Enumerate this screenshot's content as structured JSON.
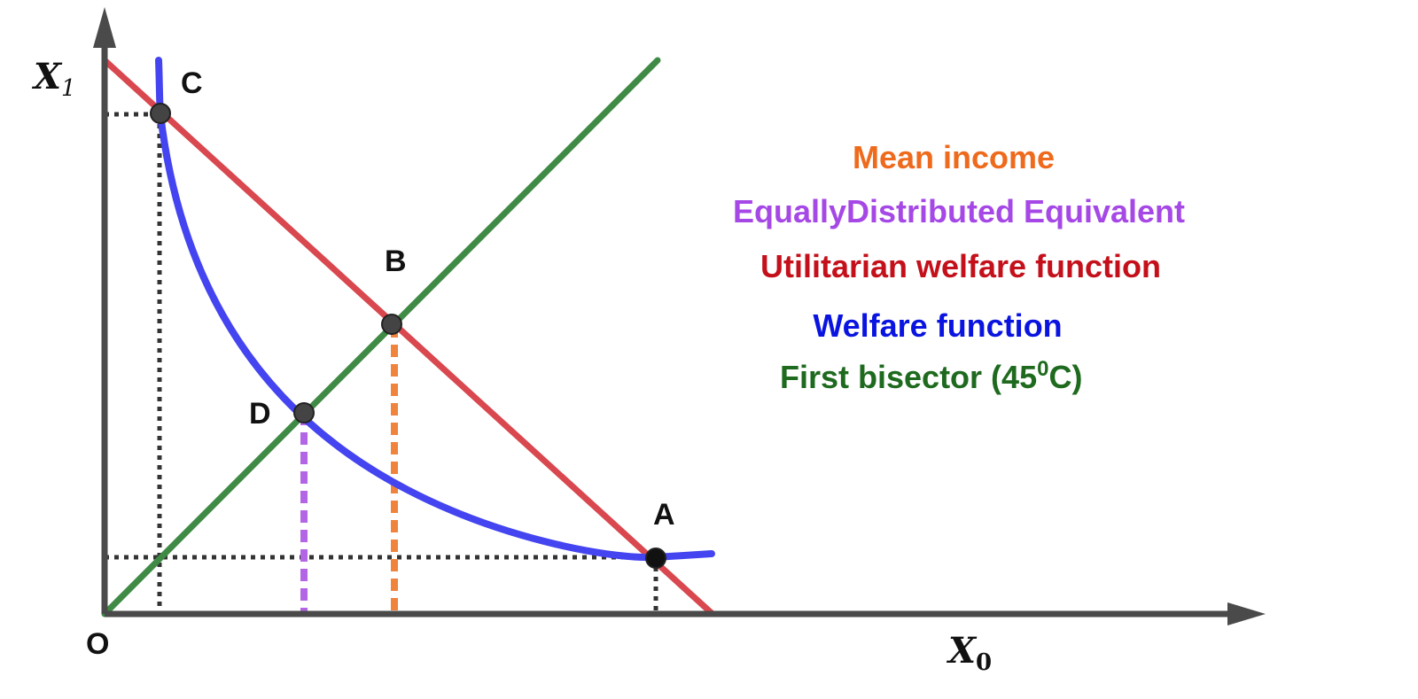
{
  "diagram": {
    "axes": {
      "x_label": "X",
      "x_sub": "0",
      "y_label": "X",
      "y_sub": "1",
      "origin_label": "O"
    },
    "points": {
      "A": "A",
      "B": "B",
      "C": "C",
      "D": "D"
    },
    "legend": {
      "mean_income": "Mean income",
      "ede": "EquallyDistributed Equivalent",
      "utilitarian": "Utilitarian welfare function",
      "welfare": "Welfare function",
      "bisector": "First bisector (45",
      "bisector_sup": "0",
      "bisector_end": "C)"
    },
    "colors": {
      "axis": "#4a4a4a",
      "utilitarian_line": "#d9474f",
      "bisector_line": "#3f8a44",
      "welfare_curve": "#4444f0",
      "mean_income_guide": "#f0843c",
      "ede_guide": "#b266e6",
      "projection_guide": "#333333",
      "mean_income_text": "#ee6a1c",
      "ede_text": "#a548e6",
      "utilitarian_text": "#c4101a",
      "welfare_text": "#0a14e0",
      "bisector_text": "#1e6a1e",
      "point_fill": "#444444"
    }
  }
}
